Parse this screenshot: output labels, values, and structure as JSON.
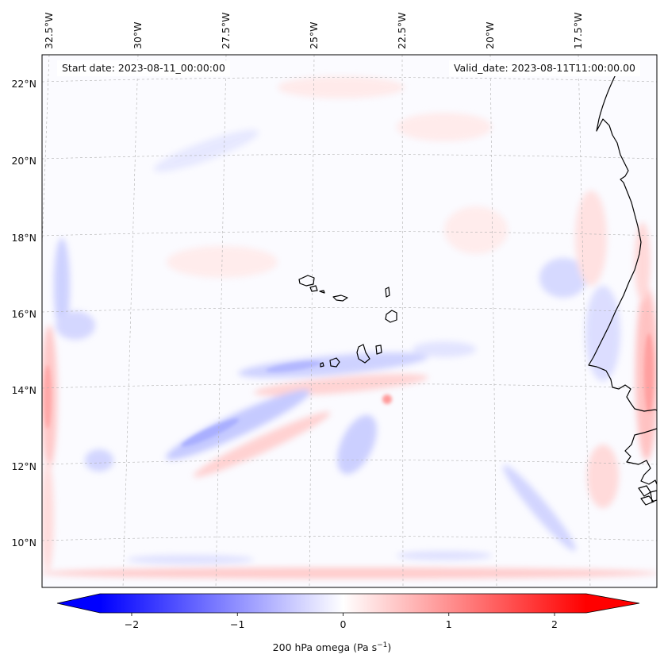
{
  "map": {
    "start_date": "Start date: 2023-08-11_00:00:00",
    "valid_date": "Valid_date: 2023-08-11T11:00:00.00",
    "lon_ticks": [
      "32.5°W",
      "30°W",
      "27.5°W",
      "25°W",
      "22.5°W",
      "20°W",
      "17.5°W"
    ],
    "lat_ticks": [
      "22°N",
      "20°N",
      "18°N",
      "16°N",
      "14°N",
      "12°N",
      "10°N"
    ],
    "variable": "200 hPa omega",
    "units": "Pa s",
    "units_exponent": "−1",
    "colormap": "bwr",
    "colors": {
      "neg_max": "#0000ff",
      "zero": "#ffffff",
      "pos_max": "#ff0000",
      "coast": "#000000"
    }
  },
  "colorbar": {
    "min": -2.7,
    "max": 2.7,
    "extend": "both",
    "ticks": [
      {
        "value": -2,
        "label": "−2"
      },
      {
        "value": -1,
        "label": "−1"
      },
      {
        "value": 0,
        "label": "0"
      },
      {
        "value": 1,
        "label": "1"
      },
      {
        "value": 2,
        "label": "2"
      }
    ]
  }
}
